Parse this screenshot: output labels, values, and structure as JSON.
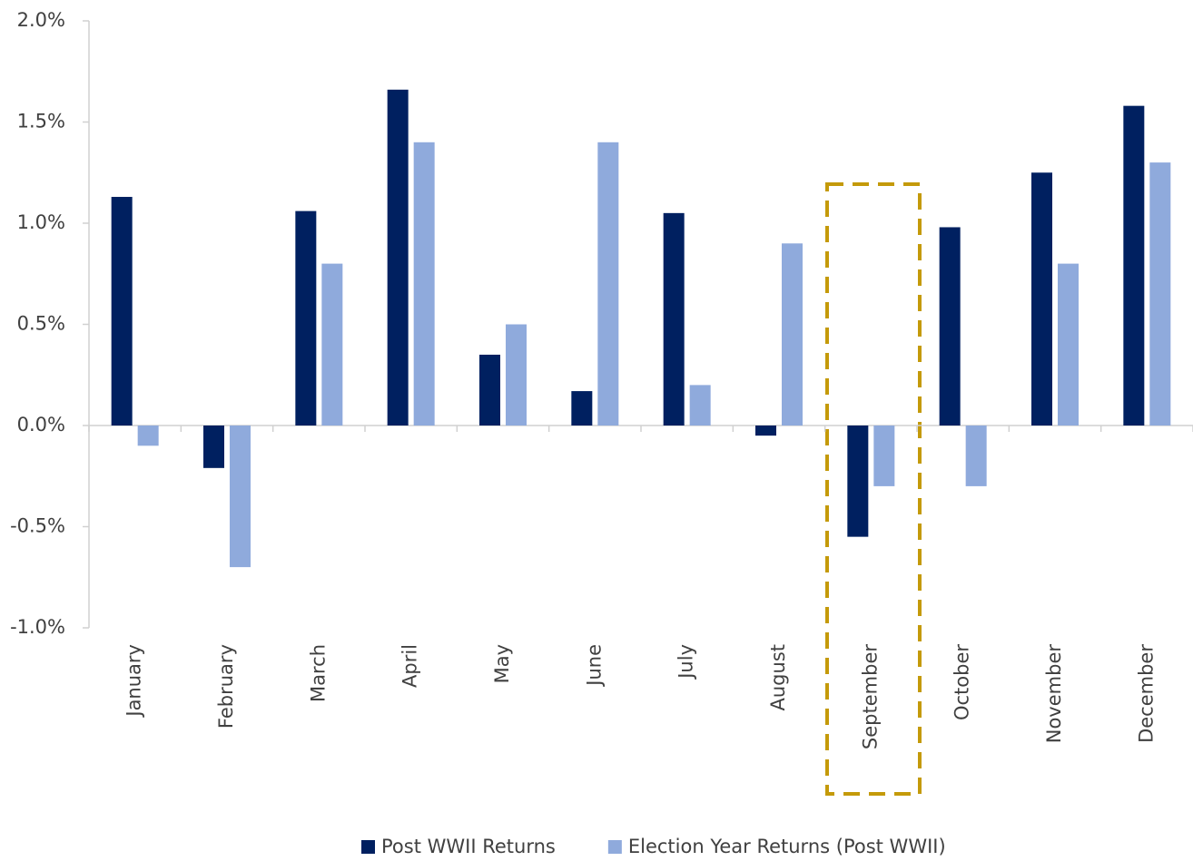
{
  "chart_data": {
    "type": "bar",
    "categories": [
      "January",
      "February",
      "March",
      "April",
      "May",
      "June",
      "July",
      "August",
      "September",
      "October",
      "November",
      "December"
    ],
    "series": [
      {
        "name": "Post WWII Returns",
        "color": "#002060",
        "values": [
          1.13,
          -0.21,
          1.06,
          1.66,
          0.35,
          0.17,
          1.05,
          -0.05,
          -0.55,
          0.98,
          1.25,
          1.58
        ]
      },
      {
        "name": "Election Year Returns (Post WWII)",
        "color": "#8faadc",
        "values": [
          -0.1,
          -0.7,
          0.8,
          1.4,
          0.5,
          1.4,
          0.2,
          0.9,
          -0.3,
          -0.3,
          0.8,
          1.3
        ]
      }
    ],
    "ylim": [
      -1.0,
      2.0
    ],
    "yticks": [
      {
        "value": -1.0,
        "label": "-1.0%"
      },
      {
        "value": -0.5,
        "label": "-0.5%"
      },
      {
        "value": 0,
        "label": "0.0%"
      },
      {
        "value": 0.5,
        "label": "0.5%"
      },
      {
        "value": 1.0,
        "label": "1.0%"
      },
      {
        "value": 1.5,
        "label": "1.5%"
      },
      {
        "value": 2.0,
        "label": "2.0%"
      }
    ],
    "grid": false,
    "legend": "bottom"
  }
}
